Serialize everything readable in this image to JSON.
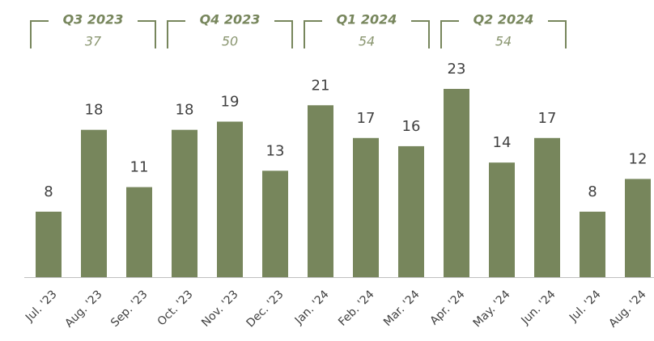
{
  "chart_data": {
    "type": "bar",
    "categories": [
      "Jul. '23",
      "Aug. '23",
      "Sep. '23",
      "Oct. '23",
      "Nov. '23",
      "Dec. '23",
      "Jan. '24",
      "Feb. '24",
      "Mar. '24",
      "Apr. '24",
      "May. '24",
      "Jun. '24",
      "Jul. '24",
      "Aug. '24"
    ],
    "values": [
      8,
      18,
      11,
      18,
      19,
      13,
      21,
      17,
      16,
      23,
      14,
      17,
      8,
      12
    ],
    "color": "#77865c",
    "annotations": [
      {
        "label": "Q3 2023",
        "value": 37
      },
      {
        "label": "Q4 2023",
        "value": 50
      },
      {
        "label": "Q1 2024",
        "value": 54
      },
      {
        "label": "Q2 2024",
        "value": 54
      }
    ]
  }
}
